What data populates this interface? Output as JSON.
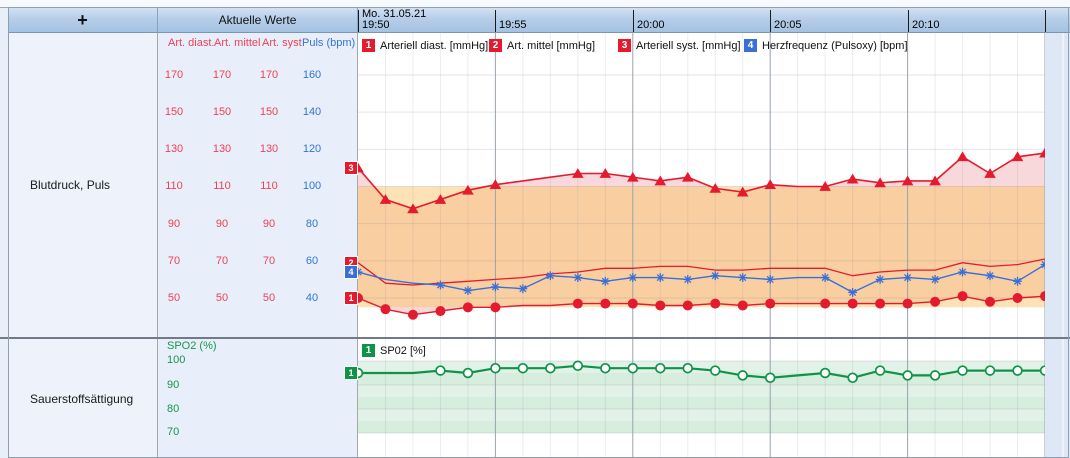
{
  "header": {
    "plus_label": "+",
    "aktuelle_werte_label": "Aktuelle Werte",
    "date_label": "Mo. 31.05.21",
    "time_ticks": [
      "19:50",
      "19:55",
      "20:00",
      "20:05",
      "20:10"
    ]
  },
  "rows": [
    {
      "label": "Blutdruck, Puls"
    },
    {
      "label": "Sauerstoffsättigung"
    }
  ],
  "bp_scale": {
    "columns": [
      {
        "header": "Art. diast.",
        "color": "#ee4056",
        "values": [
          "170",
          "150",
          "130",
          "110",
          "90",
          "70",
          "50"
        ]
      },
      {
        "header": "Art. mittel",
        "color": "#ee4056",
        "values": [
          "170",
          "150",
          "130",
          "110",
          "90",
          "70",
          "50"
        ]
      },
      {
        "header": "Art. syst",
        "color": "#ee4056",
        "values": [
          "170",
          "150",
          "130",
          "110",
          "90",
          "70",
          "50"
        ]
      },
      {
        "header": "Puls (bpm)",
        "color": "#2f74d8",
        "values": [
          "160",
          "140",
          "120",
          "100",
          "80",
          "60",
          "40"
        ]
      }
    ]
  },
  "spo2_scale": {
    "header": "SPO2 (%)",
    "color": "#15964e",
    "values": [
      "100",
      "90",
      "80",
      "70"
    ]
  },
  "colors": {
    "red_line": "#e41b2e",
    "blue_line": "#3a6fd8",
    "green_line": "#0f9447",
    "pink_fill": "#f8d8da",
    "range_band_rgba": "rgba(250,198,105,0.5)"
  },
  "chart_data": [
    {
      "type": "line",
      "title": "Blutdruck, Puls",
      "x_axis": {
        "date": "Mo. 31.05.21",
        "ticks": [
          "19:50",
          "19:55",
          "20:00",
          "20:05",
          "20:10"
        ],
        "tick_interval_min": 5,
        "points_interval_min": 1
      },
      "y_axis_mmHg": {
        "ticks": [
          170,
          150,
          130,
          110,
          90,
          70,
          50
        ]
      },
      "y_axis_bpm": {
        "ticks": [
          160,
          140,
          120,
          100,
          80,
          60,
          40
        ]
      },
      "reference_band_mmHg": [
        45,
        110
      ],
      "grid": true,
      "legend_position": "top",
      "series": [
        {
          "legend_num": "1",
          "name": "Arteriell diast. [mmHg]",
          "axis": "mmHg",
          "color": "#e41b2e",
          "marker": "circle",
          "values": [
            50,
            44,
            41,
            43,
            45,
            45,
            46,
            46,
            47,
            47,
            47,
            46,
            46,
            47,
            46,
            47,
            47,
            47,
            47,
            47,
            47,
            48,
            51,
            48,
            50,
            51
          ],
          "marker_skip": [
            6,
            7,
            16
          ]
        },
        {
          "legend_num": "2",
          "name": "Art. mittel [mmHg]",
          "axis": "mmHg",
          "color": "#e41b2e",
          "marker": "none",
          "values": [
            69,
            58,
            57,
            58,
            59,
            60,
            61,
            63,
            64,
            66,
            66,
            67,
            67,
            65,
            65,
            66,
            66,
            66,
            62,
            64,
            65,
            65,
            69,
            67,
            68,
            71
          ],
          "marker_skip": []
        },
        {
          "legend_num": "3",
          "name": "Arteriell syst. [mmHg]",
          "axis": "mmHg",
          "color": "#e41b2e",
          "marker": "triangle",
          "values": [
            120,
            103,
            98,
            103,
            108,
            111,
            113,
            115,
            117,
            117,
            115,
            113,
            115,
            109,
            107,
            111,
            110,
            110,
            114,
            112,
            113,
            113,
            126,
            117,
            126,
            128
          ],
          "marker_skip": [
            6,
            7,
            16
          ]
        },
        {
          "legend_num": "4",
          "name": "Herzfrequenz (Pulsoxy) [bpm]",
          "axis": "bpm",
          "color": "#3a6fd8",
          "marker": "asterisk",
          "values": [
            54,
            50,
            48,
            47,
            44,
            46,
            45,
            52,
            51,
            49,
            51,
            51,
            50,
            52,
            51,
            50,
            51,
            51,
            43,
            50,
            51,
            50,
            54,
            52,
            49,
            58
          ],
          "marker_skip": [
            1,
            2,
            16
          ]
        }
      ]
    },
    {
      "type": "line",
      "title": "Sauerstoffsättigung",
      "y_axis_pct": {
        "label": "SPO2 (%)",
        "ticks": [
          100,
          90,
          80,
          70
        ]
      },
      "reference_band_pct": [
        70,
        100
      ],
      "grid": true,
      "legend_position": "top",
      "series": [
        {
          "legend_num": "1",
          "name": "SP02 [%]",
          "axis": "pct",
          "color": "#0f9447",
          "marker": "circle-open",
          "values": [
            95,
            95,
            95,
            96,
            95,
            97,
            97,
            97,
            98,
            97,
            97,
            97,
            97,
            96,
            94,
            93,
            94,
            95,
            93,
            96,
            94,
            94,
            96,
            96,
            96,
            96
          ],
          "marker_skip": [
            1,
            2,
            16
          ]
        }
      ]
    }
  ]
}
